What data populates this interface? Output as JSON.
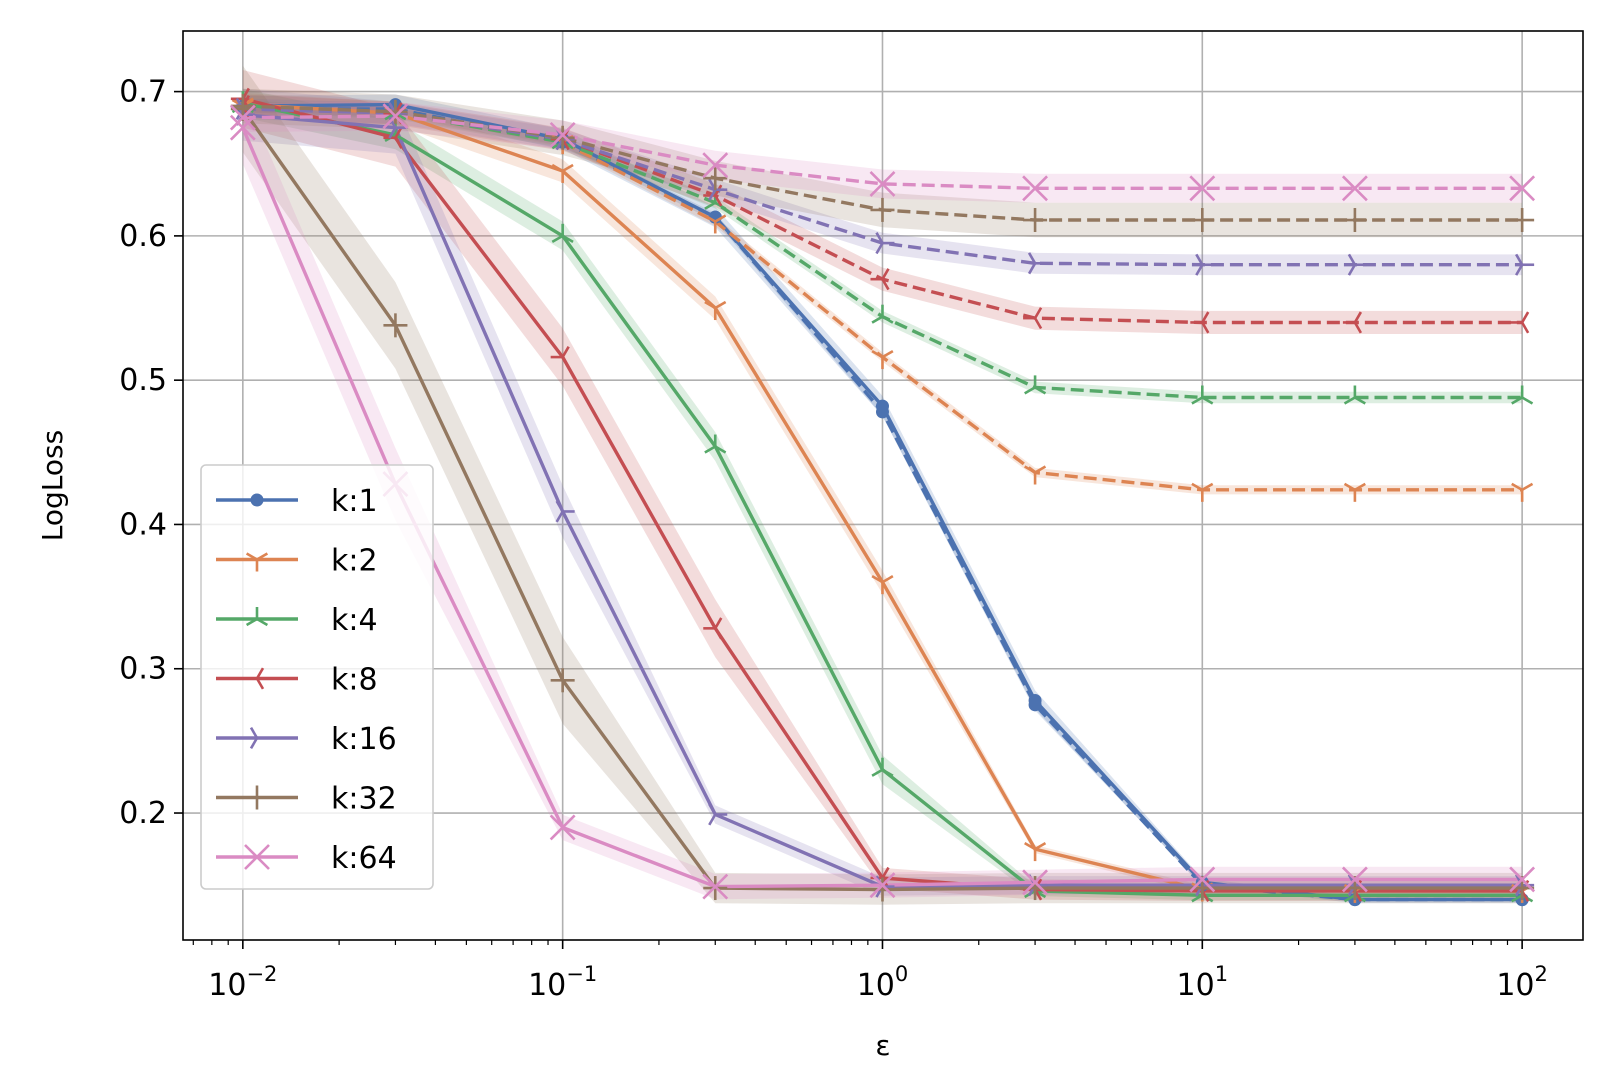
{
  "chart_data": {
    "type": "line",
    "title": "",
    "xlabel": "ε",
    "ylabel": "LogLoss",
    "x_scale": "log",
    "xlim": [
      0.0065,
      155
    ],
    "ylim": [
      0.112,
      0.742
    ],
    "grid": true,
    "legend_position": "lower-left",
    "x": [
      0.01,
      0.03,
      0.1,
      0.3,
      1,
      3,
      10,
      30,
      100
    ],
    "x_ticks": [
      0.01,
      0.1,
      1,
      10,
      100
    ],
    "x_tick_labels": [
      {
        "base": "10",
        "exp": "−2"
      },
      {
        "base": "10",
        "exp": "−1"
      },
      {
        "base": "10",
        "exp": "0"
      },
      {
        "base": "10",
        "exp": "1"
      },
      {
        "base": "10",
        "exp": "2"
      }
    ],
    "y_ticks": [
      0.2,
      0.3,
      0.4,
      0.5,
      0.6,
      0.7
    ],
    "y_tick_labels": [
      "0.2",
      "0.3",
      "0.4",
      "0.5",
      "0.6",
      "0.7"
    ],
    "series": [
      {
        "name": "k:1",
        "color": "#4c72b0",
        "marker": "dot",
        "solid": [
          0.69,
          0.691,
          0.667,
          0.613,
          0.482,
          0.278,
          0.152,
          0.14,
          0.14
        ],
        "dashed": [
          0.688,
          0.688,
          0.665,
          0.613,
          0.478,
          0.275,
          0.15,
          0.14,
          0.14
        ],
        "band": 0.007
      },
      {
        "name": "k:2",
        "color": "#dd8452",
        "marker": "tri_down",
        "solid": [
          0.691,
          0.685,
          0.645,
          0.55,
          0.36,
          0.175,
          0.147,
          0.146,
          0.146
        ],
        "dashed": [
          0.69,
          0.685,
          0.665,
          0.61,
          0.516,
          0.436,
          0.424,
          0.424,
          0.424
        ],
        "band": 0.008
      },
      {
        "name": "k:4",
        "color": "#55a868",
        "marker": "tri_up",
        "solid": [
          0.692,
          0.67,
          0.6,
          0.454,
          0.23,
          0.146,
          0.143,
          0.143,
          0.143
        ],
        "dashed": [
          0.69,
          0.685,
          0.665,
          0.623,
          0.544,
          0.495,
          0.488,
          0.488,
          0.488
        ],
        "band": 0.01
      },
      {
        "name": "k:8",
        "color": "#c44e52",
        "marker": "tri_left",
        "solid": [
          0.695,
          0.668,
          0.516,
          0.328,
          0.155,
          0.147,
          0.146,
          0.146,
          0.146
        ],
        "dashed": [
          0.69,
          0.685,
          0.667,
          0.628,
          0.57,
          0.543,
          0.54,
          0.54,
          0.54
        ],
        "band": 0.02
      },
      {
        "name": "k:16",
        "color": "#8172b3",
        "marker": "tri_right",
        "solid": [
          0.684,
          0.675,
          0.409,
          0.199,
          0.149,
          0.15,
          0.15,
          0.15,
          0.15
        ],
        "dashed": [
          0.688,
          0.685,
          0.667,
          0.632,
          0.595,
          0.581,
          0.58,
          0.58,
          0.58
        ],
        "band": 0.018
      },
      {
        "name": "k:32",
        "color": "#937860",
        "marker": "plus",
        "solid": [
          0.688,
          0.538,
          0.292,
          0.148,
          0.147,
          0.148,
          0.148,
          0.148,
          0.148
        ],
        "dashed": [
          0.69,
          0.686,
          0.668,
          0.64,
          0.618,
          0.611,
          0.611,
          0.611,
          0.611
        ],
        "band": 0.03
      },
      {
        "name": "k:64",
        "color": "#da8bc3",
        "marker": "x",
        "solid": [
          0.675,
          0.428,
          0.19,
          0.149,
          0.15,
          0.152,
          0.154,
          0.154,
          0.154
        ],
        "dashed": [
          0.682,
          0.683,
          0.67,
          0.649,
          0.636,
          0.633,
          0.633,
          0.633,
          0.633
        ],
        "band": 0.025
      }
    ]
  }
}
